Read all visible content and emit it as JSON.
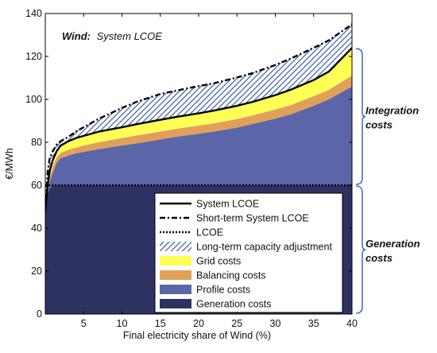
{
  "chart_data": {
    "type": "area",
    "title_bold": "Wind:",
    "title_rest": "System LCOE",
    "xlabel": "Final electricity share of Wind (%)",
    "ylabel": "€/MWh",
    "xlim": [
      0,
      40
    ],
    "ylim": [
      0,
      140
    ],
    "xticks": [
      5,
      10,
      15,
      20,
      25,
      30,
      35,
      40
    ],
    "yticks": [
      0,
      20,
      40,
      60,
      80,
      100,
      120,
      140
    ],
    "x": [
      0,
      0.3,
      0.6,
      1,
      1.5,
      2,
      3,
      4,
      5,
      7,
      10,
      12,
      15,
      17,
      20,
      22,
      25,
      27,
      30,
      32,
      35,
      37,
      40
    ],
    "series": [
      {
        "name": "Generation costs",
        "color": "#2e3263",
        "values": [
          48,
          56,
          58.5,
          60,
          60,
          60,
          60,
          60,
          60,
          60,
          60,
          60,
          60,
          60,
          60,
          60,
          60,
          60,
          60,
          60,
          60,
          60,
          60
        ]
      },
      {
        "name": "Profile costs",
        "color": "#5b66a8",
        "values": [
          48,
          56,
          62,
          66,
          70.5,
          72.5,
          73.8,
          74.8,
          75.5,
          76.8,
          78.5,
          79.5,
          81.3,
          82.5,
          84,
          85,
          86.8,
          88.5,
          91,
          93,
          97,
          100,
          106
        ]
      },
      {
        "name": "Balancing costs",
        "color": "#e0a05a",
        "values": [
          48,
          57,
          64,
          69,
          73,
          75,
          76.5,
          77.5,
          78.5,
          80,
          82,
          83.2,
          85,
          86.2,
          87.8,
          88.8,
          90.8,
          92.5,
          95.3,
          97.3,
          101.5,
          104.5,
          111
        ]
      },
      {
        "name": "Grid costs",
        "color": "#ffff55",
        "values": [
          48,
          60,
          67,
          72,
          76,
          78.5,
          80.5,
          82,
          83,
          85,
          87,
          88.5,
          90.5,
          91.8,
          93.5,
          94.8,
          97,
          98.8,
          102,
          104.5,
          109,
          113,
          124
        ]
      },
      {
        "name": "Long-term capacity adjustment",
        "color": "#3d5aa5",
        "values": [
          48,
          66,
          73,
          76,
          79,
          80.5,
          82.5,
          85,
          87,
          91,
          96,
          99,
          102.5,
          104,
          106.2,
          107.5,
          110.2,
          112.2,
          116,
          119,
          124,
          127.5,
          135
        ]
      }
    ],
    "lines": [
      {
        "name": "System LCOE",
        "style": "solid",
        "values": [
          48,
          60,
          67,
          72,
          76,
          78.5,
          80.5,
          82,
          83,
          85,
          87,
          88.5,
          90.5,
          91.8,
          93.5,
          94.8,
          97,
          98.8,
          102,
          104.5,
          109,
          113,
          124
        ]
      },
      {
        "name": "Short-term System LCOE",
        "style": "dashdot",
        "values": [
          48,
          66,
          73,
          76,
          79,
          80.5,
          82.5,
          85,
          87,
          91,
          96,
          99,
          102.5,
          104,
          106.2,
          107.5,
          110.2,
          112.2,
          116,
          119,
          124,
          127.5,
          135
        ]
      },
      {
        "name": "LCOE",
        "style": "dotted",
        "values": [
          60,
          60,
          60,
          60,
          60,
          60,
          60,
          60,
          60,
          60,
          60,
          60,
          60,
          60,
          60,
          60,
          60,
          60,
          60,
          60,
          60,
          60,
          60
        ]
      }
    ],
    "legend": [
      {
        "label": "System LCOE",
        "kind": "line",
        "style": "solid"
      },
      {
        "label": "Short-term System LCOE",
        "kind": "line",
        "style": "dashdot"
      },
      {
        "label": "LCOE",
        "kind": "line",
        "style": "dotted"
      },
      {
        "label": "Long-term capacity adjustment",
        "kind": "hatch",
        "color": "#3d5aa5"
      },
      {
        "label": "Grid costs",
        "kind": "fill",
        "color": "#ffff55"
      },
      {
        "label": "Balancing costs",
        "kind": "fill",
        "color": "#e0a05a"
      },
      {
        "label": "Profile costs",
        "kind": "fill",
        "color": "#5b66a8"
      },
      {
        "label": "Generation costs",
        "kind": "fill",
        "color": "#2e3263"
      }
    ],
    "legend_position": "bottom-right",
    "braces": [
      {
        "line1": "Integration",
        "line2": "costs",
        "range": [
          60,
          124
        ]
      },
      {
        "line1": "Generation",
        "line2": "costs",
        "range": [
          0,
          60
        ]
      }
    ],
    "brace_color": "#4a6fbf",
    "grid": false
  }
}
